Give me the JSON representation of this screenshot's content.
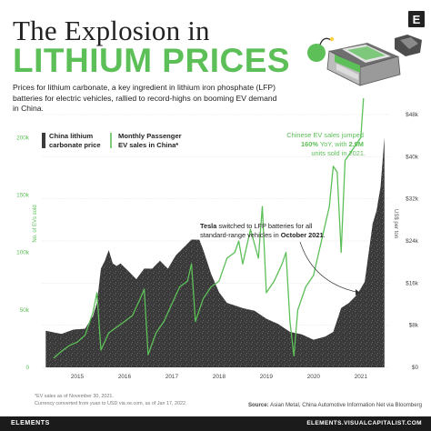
{
  "header": {
    "title_line1": "The Explosion in",
    "title_line2": "LITHIUM PRICES",
    "logo_letter": "E",
    "intro": "Prices for lithium carbonate, a key ingredient in lithium iron phosphate (LFP) batteries for electric vehicles, rallied to record-highs on booming EV demand in China."
  },
  "chart_data": {
    "type": "area+line",
    "x_ticks": [
      "2015",
      "2016",
      "2017",
      "2018",
      "2019",
      "2020",
      "2021"
    ],
    "y_left_label": "No. of EVs sold",
    "y_left_ticks": [
      "0",
      "50k",
      "100k",
      "150k",
      "200k"
    ],
    "y_right_label": "US$ per ton",
    "y_right_ticks": [
      "$0",
      "$8k",
      "$16k",
      "$24k",
      "$32k",
      "$40k",
      "$48k"
    ],
    "grid": true,
    "legend_position": "top-left",
    "series": [
      {
        "name": "China lithium carbonate price",
        "unit": "US$ per ton",
        "color": "#333333",
        "points": [
          [
            "2014-11",
            6700
          ],
          [
            "2015-03",
            6600
          ],
          [
            "2015-06",
            6900
          ],
          [
            "2015-09",
            7600
          ],
          [
            "2015-11",
            9500
          ],
          [
            "2015-12",
            12500
          ],
          [
            "2016-01",
            18500
          ],
          [
            "2016-02",
            20500
          ],
          [
            "2016-03",
            22000
          ],
          [
            "2016-04",
            20000
          ],
          [
            "2016-05",
            19000
          ],
          [
            "2016-06",
            20000
          ],
          [
            "2016-08",
            18000
          ],
          [
            "2016-10",
            17000
          ],
          [
            "2016-12",
            18500
          ],
          [
            "2017-02",
            19000
          ],
          [
            "2017-04",
            20000
          ],
          [
            "2017-06",
            19000
          ],
          [
            "2017-08",
            21000
          ],
          [
            "2017-10",
            23000
          ],
          [
            "2017-12",
            24000
          ],
          [
            "2018-02",
            24500
          ],
          [
            "2018-03",
            22000
          ],
          [
            "2018-05",
            18000
          ],
          [
            "2018-07",
            14000
          ],
          [
            "2018-09",
            12500
          ],
          [
            "2018-11",
            11500
          ],
          [
            "2019-01",
            11500
          ],
          [
            "2019-04",
            10500
          ],
          [
            "2019-07",
            9500
          ],
          [
            "2019-10",
            8000
          ],
          [
            "2020-01",
            7000
          ],
          [
            "2020-04",
            6000
          ],
          [
            "2020-07",
            5500
          ],
          [
            "2020-10",
            5600
          ],
          [
            "2020-12",
            7000
          ],
          [
            "2021-02",
            11000
          ],
          [
            "2021-04",
            12500
          ],
          [
            "2021-06",
            13500
          ],
          [
            "2021-08",
            16500
          ],
          [
            "2021-10",
            27000
          ],
          [
            "2021-11",
            30000
          ],
          [
            "2021-12",
            34000
          ],
          [
            "2022-01",
            44000
          ]
        ]
      },
      {
        "name": "Monthly Passenger EV sales in China*",
        "unit": "EVs sold",
        "color": "#5cbf58",
        "points": [
          [
            "2015-01",
            8000
          ],
          [
            "2015-03",
            14000
          ],
          [
            "2015-05",
            19000
          ],
          [
            "2015-07",
            22000
          ],
          [
            "2015-09",
            28000
          ],
          [
            "2015-11",
            48000
          ],
          [
            "2015-12",
            65000
          ],
          [
            "2016-01",
            15000
          ],
          [
            "2016-03",
            30000
          ],
          [
            "2016-05",
            35000
          ],
          [
            "2016-07",
            40000
          ],
          [
            "2016-09",
            45000
          ],
          [
            "2016-11",
            60000
          ],
          [
            "2016-12",
            68000
          ],
          [
            "2017-01",
            11000
          ],
          [
            "2017-03",
            30000
          ],
          [
            "2017-05",
            40000
          ],
          [
            "2017-07",
            55000
          ],
          [
            "2017-09",
            70000
          ],
          [
            "2017-11",
            75000
          ],
          [
            "2017-12",
            90000
          ],
          [
            "2018-01",
            40000
          ],
          [
            "2018-03",
            60000
          ],
          [
            "2018-05",
            70000
          ],
          [
            "2018-07",
            75000
          ],
          [
            "2018-09",
            95000
          ],
          [
            "2018-11",
            100000
          ],
          [
            "2018-12",
            110000
          ],
          [
            "2019-01",
            90000
          ],
          [
            "2019-03",
            120000
          ],
          [
            "2019-05",
            95000
          ],
          [
            "2019-06",
            140000
          ],
          [
            "2019-07",
            65000
          ],
          [
            "2019-09",
            75000
          ],
          [
            "2019-11",
            90000
          ],
          [
            "2019-12",
            100000
          ],
          [
            "2020-01",
            40000
          ],
          [
            "2020-02",
            10000
          ],
          [
            "2020-03",
            50000
          ],
          [
            "2020-05",
            70000
          ],
          [
            "2020-07",
            80000
          ],
          [
            "2020-09",
            110000
          ],
          [
            "2020-11",
            140000
          ],
          [
            "2020-12",
            175000
          ],
          [
            "2021-01",
            170000
          ],
          [
            "2021-02",
            100000
          ],
          [
            "2021-03",
            180000
          ],
          [
            "2021-05",
            190000
          ],
          [
            "2021-07",
            200000
          ],
          [
            "2021-09",
            300000
          ],
          [
            "2021-11",
            290000
          ]
        ]
      }
    ],
    "legend_price": "China lithium carbonate price",
    "legend_sales": "Monthly Passenger EV sales in China*",
    "annotations": {
      "tesla": "Tesla switched to LFP batteries for all standard-range vehicles in October 2021.",
      "tesla_pre": "Tesla",
      "tesla_mid": " switched to LFP batteries for all",
      "tesla_line2_pre": "standard-range vehicles in ",
      "tesla_bold2": "October 2021",
      "tesla_end": ".",
      "sales_line1": "Chinese EV sales jumped",
      "sales_line2_bold": "160%",
      "sales_line2_mid": " YoY, with ",
      "sales_line2_bold2": "2.9M",
      "sales_line3": "units sold in 2021."
    }
  },
  "footer": {
    "footnote_line1": "*EV sales as of November 30, 2021.",
    "footnote_line2": "Currency converted from yuan to USD via xe.com, as of Jan 17, 2022",
    "source_label": "Source:",
    "source_text": "Asian Metal, China Automotive Information Net via Bloomberg",
    "brand": "ELEMENTS",
    "site": "ELEMENTS.VISUALCAPITALIST.COM"
  },
  "colors": {
    "green": "#5cbf58",
    "dark": "#1b1b1b",
    "price_fill": "#3a3a3a"
  }
}
